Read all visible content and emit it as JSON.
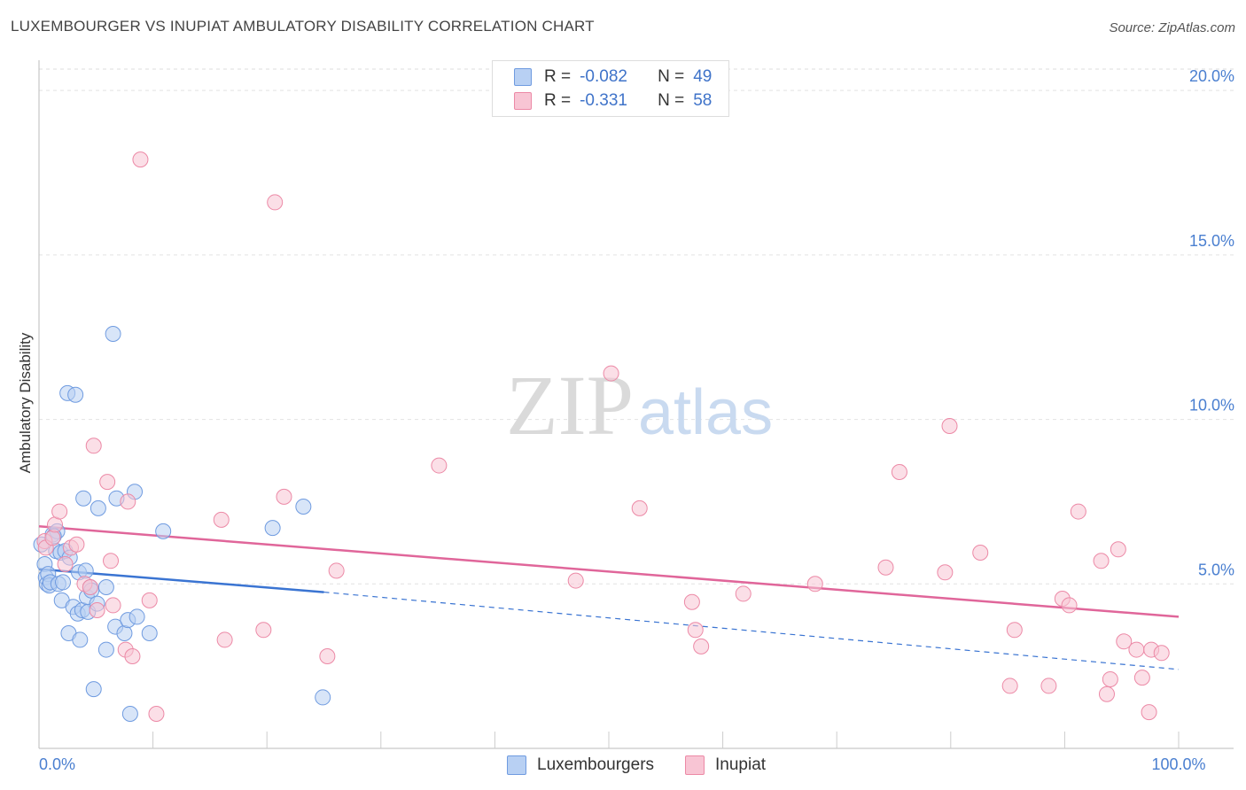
{
  "title": "LUXEMBOURGER VS INUPIAT AMBULATORY DISABILITY CORRELATION CHART",
  "source": "Source: ZipAtlas.com",
  "watermark": {
    "zip": "ZIP",
    "atlas": "atlas"
  },
  "legend": {
    "rows": [
      {
        "name": "Luxembourgers",
        "r_label": "R =",
        "r_value": "-0.082",
        "n_label": "N =",
        "n_value": "49",
        "fill": "#b8d0f3",
        "stroke": "#6f9be0"
      },
      {
        "name": "Inupiat",
        "r_label": "R =",
        "r_value": "-0.331",
        "n_label": "N =",
        "n_value": "58",
        "fill": "#f8c5d4",
        "stroke": "#ec89a6"
      }
    ]
  },
  "chart_data": {
    "type": "scatter",
    "xlabel": "",
    "ylabel": "Ambulatory Disability",
    "xlim": [
      0,
      100
    ],
    "ylim": [
      0,
      21
    ],
    "x_tick_labels": [
      {
        "value": 0,
        "label": "0.0%"
      },
      {
        "value": 100,
        "label": "100.0%"
      }
    ],
    "x_minor_ticks": [
      10,
      20,
      30,
      40,
      50,
      60,
      70,
      80,
      90,
      100
    ],
    "y_ticks": [
      {
        "value": 5,
        "label": "5.0%"
      },
      {
        "value": 10,
        "label": "10.0%"
      },
      {
        "value": 15,
        "label": "15.0%"
      },
      {
        "value": 20,
        "label": "20.0%"
      }
    ],
    "grid": true,
    "series": [
      {
        "name": "Luxembourgers",
        "color": "#6f9be0",
        "fill": "#b8d0f3",
        "line_color": "#3a74d2",
        "trend": {
          "x_start": 0,
          "y_start": 5.45,
          "x_solid_end": 25,
          "y_solid_end": 4.75,
          "x_end": 100,
          "y_end": 2.4
        },
        "points": [
          [
            0.2,
            6.2
          ],
          [
            0.5,
            5.6
          ],
          [
            0.6,
            5.2
          ],
          [
            0.7,
            5.0
          ],
          [
            0.8,
            5.3
          ],
          [
            0.9,
            4.95
          ],
          [
            1.0,
            5.05
          ],
          [
            1.2,
            6.5
          ],
          [
            1.5,
            6.0
          ],
          [
            1.6,
            6.6
          ],
          [
            1.7,
            5.0
          ],
          [
            1.9,
            5.95
          ],
          [
            2.0,
            4.5
          ],
          [
            2.1,
            5.05
          ],
          [
            2.3,
            6.0
          ],
          [
            2.5,
            10.8
          ],
          [
            2.6,
            3.5
          ],
          [
            2.7,
            5.8
          ],
          [
            3.0,
            4.3
          ],
          [
            3.2,
            10.75
          ],
          [
            3.4,
            4.1
          ],
          [
            3.5,
            5.35
          ],
          [
            3.6,
            3.3
          ],
          [
            3.8,
            4.2
          ],
          [
            3.9,
            7.6
          ],
          [
            4.1,
            5.4
          ],
          [
            4.2,
            4.6
          ],
          [
            4.3,
            4.15
          ],
          [
            4.5,
            4.9
          ],
          [
            4.6,
            4.8
          ],
          [
            4.8,
            1.8
          ],
          [
            5.1,
            4.4
          ],
          [
            5.2,
            7.3
          ],
          [
            5.9,
            3.0
          ],
          [
            5.9,
            4.9
          ],
          [
            6.5,
            12.6
          ],
          [
            6.7,
            3.7
          ],
          [
            6.8,
            7.6
          ],
          [
            7.5,
            3.5
          ],
          [
            7.8,
            3.9
          ],
          [
            8.0,
            1.05
          ],
          [
            8.4,
            7.8
          ],
          [
            8.6,
            4.0
          ],
          [
            9.7,
            3.5
          ],
          [
            10.9,
            6.6
          ],
          [
            20.5,
            6.7
          ],
          [
            23.2,
            7.35
          ],
          [
            24.9,
            1.55
          ],
          [
            1.3,
            6.45
          ]
        ]
      },
      {
        "name": "Inupiat",
        "color": "#ec89a6",
        "fill": "#f8c5d4",
        "line_color": "#e0669a",
        "trend": {
          "x_start": 0,
          "y_start": 6.75,
          "x_end": 100,
          "y_end": 4.0
        },
        "points": [
          [
            0.5,
            6.3
          ],
          [
            0.6,
            6.1
          ],
          [
            1.2,
            6.4
          ],
          [
            1.4,
            6.8
          ],
          [
            1.8,
            7.2
          ],
          [
            2.3,
            5.6
          ],
          [
            2.8,
            6.1
          ],
          [
            3.3,
            6.2
          ],
          [
            4.0,
            5.0
          ],
          [
            4.5,
            4.9
          ],
          [
            4.8,
            9.2
          ],
          [
            5.1,
            4.2
          ],
          [
            6.0,
            8.1
          ],
          [
            6.3,
            5.7
          ],
          [
            6.5,
            4.35
          ],
          [
            7.6,
            3.0
          ],
          [
            7.8,
            7.5
          ],
          [
            8.2,
            2.8
          ],
          [
            8.9,
            17.9
          ],
          [
            9.7,
            4.5
          ],
          [
            10.3,
            1.05
          ],
          [
            16.0,
            6.95
          ],
          [
            16.3,
            3.3
          ],
          [
            19.7,
            3.6
          ],
          [
            20.7,
            16.6
          ],
          [
            21.5,
            7.65
          ],
          [
            25.3,
            2.8
          ],
          [
            26.1,
            5.4
          ],
          [
            35.1,
            8.6
          ],
          [
            47.1,
            5.1
          ],
          [
            50.2,
            11.4
          ],
          [
            52.7,
            7.3
          ],
          [
            57.3,
            4.45
          ],
          [
            57.6,
            3.6
          ],
          [
            58.1,
            3.1
          ],
          [
            61.8,
            4.7
          ],
          [
            68.1,
            5.0
          ],
          [
            74.3,
            5.5
          ],
          [
            75.5,
            8.4
          ],
          [
            79.5,
            5.35
          ],
          [
            79.9,
            9.8
          ],
          [
            82.6,
            5.95
          ],
          [
            85.2,
            1.9
          ],
          [
            85.6,
            3.6
          ],
          [
            88.6,
            1.9
          ],
          [
            89.8,
            4.55
          ],
          [
            90.4,
            4.35
          ],
          [
            91.2,
            7.2
          ],
          [
            93.2,
            5.7
          ],
          [
            93.7,
            1.65
          ],
          [
            94.0,
            2.1
          ],
          [
            94.7,
            6.05
          ],
          [
            95.2,
            3.25
          ],
          [
            96.3,
            3.0
          ],
          [
            96.8,
            2.15
          ],
          [
            97.4,
            1.1
          ],
          [
            97.6,
            3.0
          ],
          [
            98.5,
            2.9
          ]
        ]
      }
    ]
  }
}
